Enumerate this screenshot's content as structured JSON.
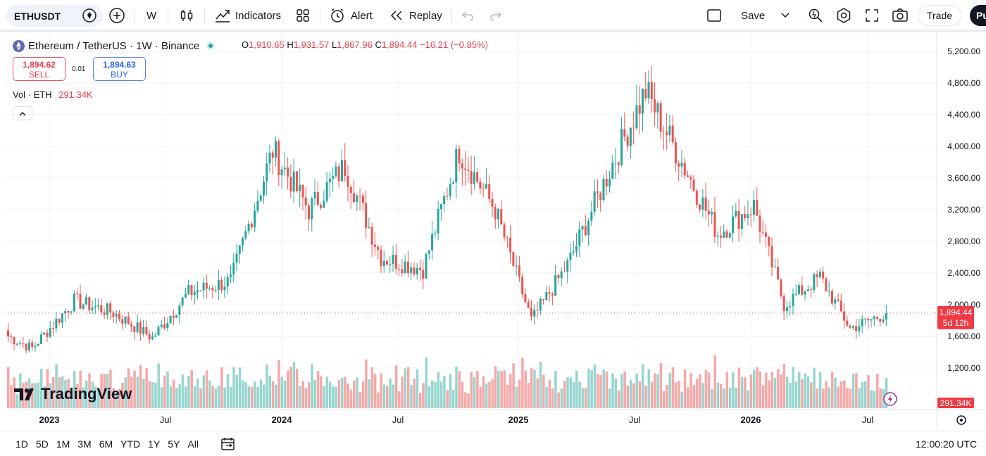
{
  "toolbar": {
    "symbol": "ETHUSDT",
    "interval": "W",
    "indicators": "Indicators",
    "alert": "Alert",
    "replay": "Replay",
    "save": "Save",
    "trade": "Trade",
    "publish_fragment": "Pu"
  },
  "legend": {
    "title": "Ethereum / TetherUS · 1W · Binance",
    "o_label": "O",
    "o": "1,910.65",
    "h_label": "H",
    "h": "1,931.57",
    "l_label": "L",
    "l": "1,867.96",
    "c_label": "C",
    "c": "1,894.44",
    "change": "−16.21 (−0.85%)"
  },
  "order": {
    "sell_price": "1,894.62",
    "sell_label": "SELL",
    "spread": "0.01",
    "buy_price": "1,894.63",
    "buy_label": "BUY"
  },
  "volume": {
    "label": "Vol · ETH",
    "value": "291.34K"
  },
  "logo": {
    "text": "TradingView"
  },
  "price_axis": [
    "5,200.00",
    "4,800.00",
    "4,400.00",
    "4,000.00",
    "3,600.00",
    "3,200.00",
    "2,800.00",
    "2,400.00",
    "2,000.00",
    "1,600.00",
    "1,200.00"
  ],
  "current_price": {
    "price": "1,894.44",
    "countdown": "5d 12h"
  },
  "volume_tag": "291.34K",
  "time_axis": [
    "2023",
    "Jul",
    "2024",
    "Jul",
    "2025",
    "Jul",
    "2026",
    "Jul"
  ],
  "ranges": [
    "1D",
    "5D",
    "1M",
    "3M",
    "6M",
    "YTD",
    "1Y",
    "5Y",
    "All"
  ],
  "clock": "12:00:20 UTC",
  "colors": {
    "up": "#26a69a",
    "down": "#ef5350",
    "vol_up": "#97d6cf",
    "vol_down": "#f6a8a8"
  },
  "chart_data": {
    "type": "candlestick",
    "ylim": [
      1100,
      5400
    ],
    "x": [
      "2023",
      "Jul",
      "2024",
      "Jul",
      "2025",
      "Jul",
      "2026",
      "Jul"
    ],
    "key_points": [
      {
        "t": 0,
        "close": 1600
      },
      {
        "t": 8,
        "close": 1450
      },
      {
        "t": 22,
        "close": 2050
      },
      {
        "t": 35,
        "close": 1900
      },
      {
        "t": 48,
        "close": 1580
      },
      {
        "t": 60,
        "close": 2150
      },
      {
        "t": 74,
        "close": 2300
      },
      {
        "t": 88,
        "close": 3950
      },
      {
        "t": 100,
        "close": 3200
      },
      {
        "t": 112,
        "close": 3750
      },
      {
        "t": 124,
        "close": 2600
      },
      {
        "t": 138,
        "close": 2450
      },
      {
        "t": 150,
        "close": 3950
      },
      {
        "t": 162,
        "close": 3200
      },
      {
        "t": 174,
        "close": 1800
      },
      {
        "t": 186,
        "close": 2500
      },
      {
        "t": 200,
        "close": 3700
      },
      {
        "t": 212,
        "close": 4700
      },
      {
        "t": 224,
        "close": 3800
      },
      {
        "t": 236,
        "close": 2900
      },
      {
        "t": 248,
        "close": 3250
      },
      {
        "t": 258,
        "close": 2000
      },
      {
        "t": 270,
        "close": 2350
      },
      {
        "t": 280,
        "close": 1700
      },
      {
        "t": 292,
        "close": 1894
      }
    ]
  }
}
